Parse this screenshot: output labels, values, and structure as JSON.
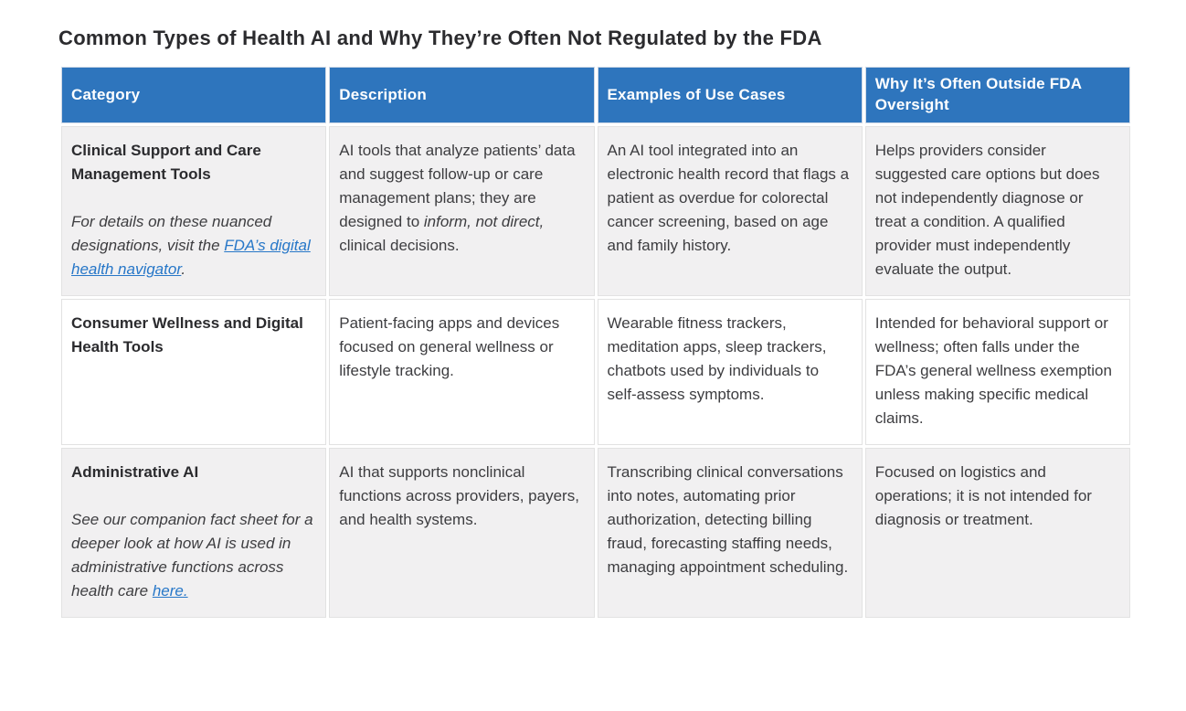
{
  "title": "Common Types of Health AI and Why They’re Often Not Regulated by the FDA",
  "colors": {
    "header_bg": "#2e75bd",
    "header_text": "#ffffff",
    "row_shade": "#f1f0f1",
    "row_white": "#ffffff",
    "body_text": "#3d3d40",
    "heading_text": "#2b2b2e",
    "link": "#2777c8",
    "cell_border": "#e2e2e2"
  },
  "table": {
    "columns": [
      "Category",
      "Description",
      "Examples of Use Cases",
      "Why It’s Often Outside FDA Oversight"
    ],
    "rows": [
      {
        "category": {
          "name": "Clinical Support and Care Management Tools",
          "note_prefix": "For details on these nuanced designations, visit the ",
          "link_text": "FDA’s digital health navigator",
          "note_suffix": "."
        },
        "description": {
          "before_italic": "AI tools that analyze patients’ data and suggest follow-up or care management plans; they are designed to ",
          "italic": "inform, not direct,",
          "after_italic": " clinical decisions."
        },
        "examples": "An AI tool integrated into an electronic health record that flags a patient as overdue for colorectal cancer screening, based on age and family history.",
        "why": "Helps providers consider suggested care options but does not independently diagnose or treat a condition. A qualified provider must independently evaluate the output."
      },
      {
        "category": {
          "name": "Consumer Wellness and Digital Health Tools"
        },
        "description": {
          "text": "Patient-facing apps and devices focused on general wellness or lifestyle tracking."
        },
        "examples": "Wearable fitness trackers, meditation apps, sleep trackers, chatbots used by individuals to self-assess symptoms.",
        "why": "Intended for behavioral support or wellness; often falls under the FDA’s general wellness exemption unless making specific medical claims."
      },
      {
        "category": {
          "name": "Administrative AI",
          "note_prefix": "See our companion fact sheet for a deeper look at how AI is used in administrative functions across health care ",
          "link_text": "here."
        },
        "description": {
          "text": "AI that supports nonclinical functions across providers, payers, and health systems."
        },
        "examples": "Transcribing clinical conversations into notes, automating prior authorization, detecting billing fraud, forecasting staffing needs, managing appointment scheduling.",
        "why": "Focused on logistics and operations; it is not intended for diagnosis or treatment."
      }
    ]
  }
}
